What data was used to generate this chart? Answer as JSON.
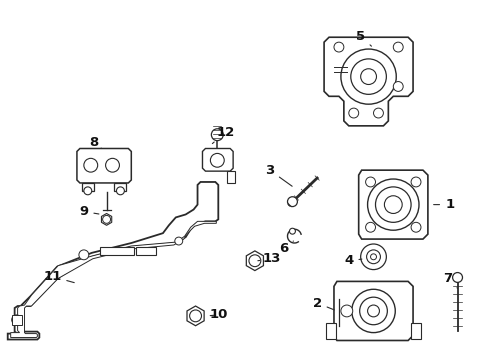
{
  "bg_color": "#ffffff",
  "fig_bg": "#ffffff",
  "line_color": "#2a2a2a",
  "label_color": "#111111",
  "label_fontsize": 9.5
}
